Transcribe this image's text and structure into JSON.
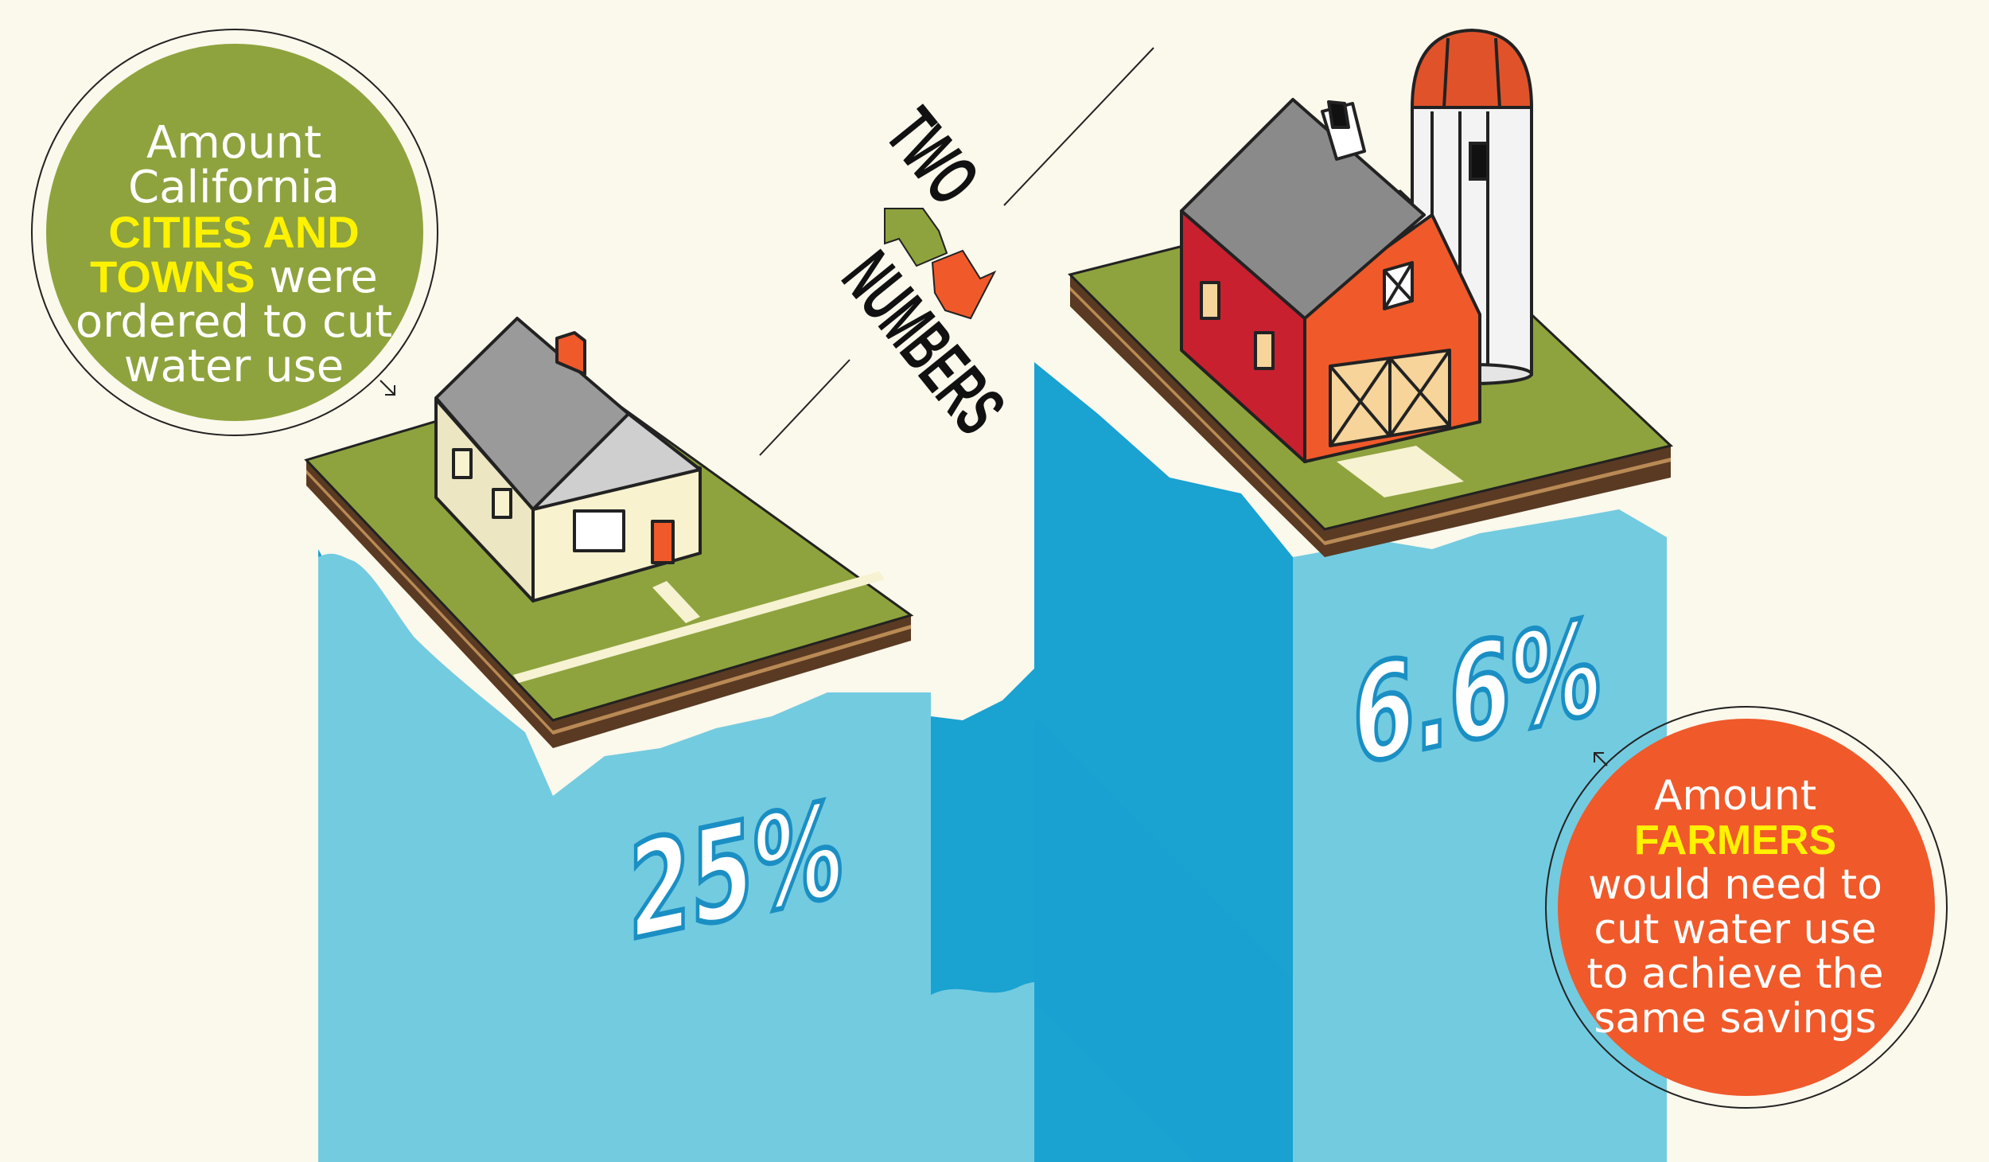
{
  "header": {
    "word_two": "TWO",
    "word_numbers": "NUMBERS"
  },
  "callouts": {
    "cities": {
      "line1": "Amount",
      "line2": "California",
      "line3": "CITIES AND",
      "line4_highlight": "TOWNS",
      "line4_rest": " were",
      "line5": "ordered to cut",
      "line6": "water use",
      "color": "#8ea33d",
      "highlight_color": "#fff200"
    },
    "farmers": {
      "line1": "Amount",
      "line2": "FARMERS",
      "line3": "would need to",
      "line4": "cut water use",
      "line5": "to achieve the",
      "line6": "same savings",
      "color": "#f0592a",
      "highlight_color": "#fff200"
    }
  },
  "stats": {
    "cities_percent": "25%",
    "farmers_percent": "6.6%"
  },
  "colors": {
    "background": "#fbf8ec",
    "water_light": "#73cbe0",
    "water_dark": "#1aa2d1",
    "grass": "#8ea33d",
    "barn_red": "#c8202f",
    "barn_orange": "#f0592a",
    "arrow_green": "#8ea33d",
    "arrow_orange": "#f0592a"
  },
  "icons": [
    "house-icon",
    "barn-icon",
    "silo-icon",
    "swap-arrows-icon"
  ]
}
